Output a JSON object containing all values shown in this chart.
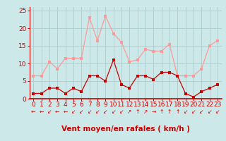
{
  "x": [
    0,
    1,
    2,
    3,
    4,
    5,
    6,
    7,
    8,
    9,
    10,
    11,
    12,
    13,
    14,
    15,
    16,
    17,
    18,
    19,
    20,
    21,
    22,
    23
  ],
  "wind_avg": [
    1.5,
    1.5,
    3,
    3,
    1.5,
    3,
    2,
    6.5,
    6.5,
    5,
    11,
    4,
    3,
    6.5,
    6.5,
    5.5,
    7.5,
    7.5,
    6.5,
    1.5,
    0.5,
    2,
    3,
    4
  ],
  "wind_gust": [
    6.5,
    6.5,
    10.5,
    8.5,
    11.5,
    11.5,
    11.5,
    23,
    16.5,
    23.5,
    18.5,
    16,
    10.5,
    11,
    14,
    13.5,
    13.5,
    15.5,
    6.5,
    6.5,
    6.5,
    8.5,
    15,
    16.5
  ],
  "avg_color": "#cc0000",
  "gust_color": "#ff9999",
  "bg_color": "#cce8e8",
  "grid_color": "#aacccc",
  "xlabel": "Vent moyen/en rafales ( km/h )",
  "ylim": [
    0,
    26
  ],
  "yticks": [
    0,
    5,
    10,
    15,
    20,
    25
  ],
  "xticks": [
    0,
    1,
    2,
    3,
    4,
    5,
    6,
    7,
    8,
    9,
    10,
    11,
    12,
    13,
    14,
    15,
    16,
    17,
    18,
    19,
    20,
    21,
    22,
    23
  ],
  "tick_color": "#cc0000",
  "xlabel_color": "#cc0000",
  "xlabel_fontsize": 7.5,
  "tick_fontsize": 6.5,
  "marker_size": 2.5,
  "line_width": 0.9,
  "arrows": [
    "←",
    "←",
    "↙",
    "←",
    "←",
    "↙",
    "↙",
    "↙",
    "↙",
    "↙",
    "↙",
    "↙",
    "↗",
    "↑",
    "↗",
    "→",
    "↑",
    "↑",
    "↑",
    "↙",
    "↙",
    "↙",
    "↙",
    "↙"
  ]
}
